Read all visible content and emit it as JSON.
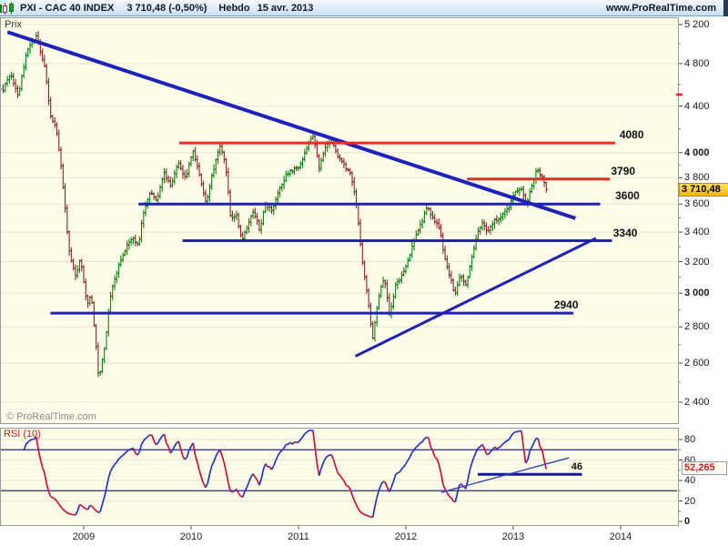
{
  "title_bar": {
    "icon": "candlestick-chart-icon",
    "symbol": "PXI - CAC 40 INDEX",
    "last_price": "3 710,48",
    "change": "(-0,50%)",
    "timeframe": "Hebdo",
    "date": "15 avr. 2013",
    "website": "www.ProRealTime.com"
  },
  "main_chart": {
    "y_axis_title": "Prix",
    "watermark": "© ProRealTime.com",
    "current_price_box": "3 710,48",
    "axis": {
      "ticks": [
        {
          "value": 5200,
          "label": "5 200"
        },
        {
          "value": 4800,
          "label": "4 800"
        },
        {
          "value": 4400,
          "label": "4 400"
        },
        {
          "value": 4000,
          "label": "4 000",
          "bold": true
        },
        {
          "value": 3800,
          "label": "3 800"
        },
        {
          "value": 3600,
          "label": "3 600"
        },
        {
          "value": 3400,
          "label": "3 400"
        },
        {
          "value": 3200,
          "label": "3 200"
        },
        {
          "value": 3000,
          "label": "3 000",
          "bold": true
        },
        {
          "value": 2800,
          "label": "2 800"
        },
        {
          "value": 2600,
          "label": "2 600"
        },
        {
          "value": 2400,
          "label": "2 400"
        }
      ],
      "minor_ticks": [
        5000,
        4600,
        4200,
        3900,
        3700,
        3500,
        3300,
        3100,
        2900,
        2700,
        2500
      ],
      "alert_marker_price": 4505
    }
  },
  "rsi_panel": {
    "label": "RSI (10)",
    "value_box": "52,265",
    "annotation_label": "46",
    "axis": {
      "ticks": [
        {
          "value": 80,
          "label": "80"
        },
        {
          "value": 60,
          "label": "60"
        },
        {
          "value": 40,
          "label": "40"
        },
        {
          "value": 20,
          "label": "20"
        },
        {
          "value": 0,
          "label": "0",
          "bold": true
        }
      ],
      "minor_ticks": [
        70,
        50,
        30,
        10
      ]
    }
  },
  "x_axis": {
    "years": [
      {
        "value": 2009,
        "label": "2009"
      },
      {
        "value": 2010,
        "label": "2010"
      },
      {
        "value": 2011,
        "label": "2011"
      },
      {
        "value": 2012,
        "label": "2012"
      },
      {
        "value": 2013,
        "label": "2013"
      },
      {
        "value": 2014,
        "label": "2014"
      }
    ]
  },
  "chart_data": [
    {
      "type": "candlestick",
      "title": "PXI - CAC 40 INDEX Hebdo (weekly bars)",
      "y_scale": "log",
      "x_range": [
        2008.25,
        2014.05
      ],
      "y_ticks": [
        5200,
        4800,
        4400,
        4000,
        3800,
        3600,
        3400,
        3200,
        3000,
        2800,
        2600,
        2400
      ],
      "bars_per_year": 52,
      "last_close": 3710.48,
      "price_path": [
        [
          2008.25,
          4550
        ],
        [
          2008.32,
          4700
        ],
        [
          2008.39,
          4500
        ],
        [
          2008.47,
          4930
        ],
        [
          2008.56,
          5070
        ],
        [
          2008.63,
          4800
        ],
        [
          2008.69,
          4330
        ],
        [
          2008.75,
          4170
        ],
        [
          2008.8,
          3800
        ],
        [
          2008.86,
          3280
        ],
        [
          2008.92,
          3100
        ],
        [
          2008.97,
          3220
        ],
        [
          2009.03,
          2930
        ],
        [
          2009.07,
          2990
        ],
        [
          2009.14,
          2520
        ],
        [
          2009.19,
          2660
        ],
        [
          2009.25,
          2990
        ],
        [
          2009.32,
          3160
        ],
        [
          2009.39,
          3280
        ],
        [
          2009.45,
          3370
        ],
        [
          2009.51,
          3310
        ],
        [
          2009.56,
          3560
        ],
        [
          2009.62,
          3700
        ],
        [
          2009.68,
          3630
        ],
        [
          2009.75,
          3840
        ],
        [
          2009.81,
          3730
        ],
        [
          2009.88,
          3910
        ],
        [
          2009.95,
          3800
        ],
        [
          2010.02,
          4020
        ],
        [
          2010.08,
          3800
        ],
        [
          2010.14,
          3600
        ],
        [
          2010.2,
          3840
        ],
        [
          2010.27,
          4060
        ],
        [
          2010.32,
          3910
        ],
        [
          2010.37,
          3470
        ],
        [
          2010.42,
          3540
        ],
        [
          2010.47,
          3340
        ],
        [
          2010.53,
          3440
        ],
        [
          2010.58,
          3560
        ],
        [
          2010.64,
          3400
        ],
        [
          2010.69,
          3600
        ],
        [
          2010.76,
          3560
        ],
        [
          2010.83,
          3730
        ],
        [
          2010.9,
          3840
        ],
        [
          2010.97,
          3870
        ],
        [
          2011.02,
          3900
        ],
        [
          2011.08,
          4050
        ],
        [
          2011.14,
          4160
        ],
        [
          2011.19,
          3870
        ],
        [
          2011.25,
          4050
        ],
        [
          2011.31,
          4090
        ],
        [
          2011.36,
          3980
        ],
        [
          2011.42,
          3900
        ],
        [
          2011.48,
          3840
        ],
        [
          2011.54,
          3600
        ],
        [
          2011.59,
          3220
        ],
        [
          2011.64,
          2990
        ],
        [
          2011.69,
          2730
        ],
        [
          2011.75,
          2990
        ],
        [
          2011.8,
          3100
        ],
        [
          2011.85,
          2860
        ],
        [
          2011.9,
          3040
        ],
        [
          2011.95,
          3100
        ],
        [
          2012.0,
          3160
        ],
        [
          2012.05,
          3280
        ],
        [
          2012.1,
          3400
        ],
        [
          2012.15,
          3470
        ],
        [
          2012.2,
          3590
        ],
        [
          2012.25,
          3500
        ],
        [
          2012.31,
          3440
        ],
        [
          2012.36,
          3220
        ],
        [
          2012.41,
          3100
        ],
        [
          2012.46,
          2990
        ],
        [
          2012.51,
          3130
        ],
        [
          2012.56,
          3040
        ],
        [
          2012.61,
          3220
        ],
        [
          2012.66,
          3370
        ],
        [
          2012.71,
          3470
        ],
        [
          2012.76,
          3400
        ],
        [
          2012.81,
          3470
        ],
        [
          2012.86,
          3500
        ],
        [
          2012.92,
          3540
        ],
        [
          2012.97,
          3590
        ],
        [
          2013.02,
          3700
        ],
        [
          2013.07,
          3730
        ],
        [
          2013.12,
          3600
        ],
        [
          2013.17,
          3730
        ],
        [
          2013.22,
          3870
        ],
        [
          2013.27,
          3800
        ],
        [
          2013.31,
          3710
        ]
      ],
      "levels": [
        {
          "label": "4080",
          "price": 4080,
          "color": "#ee2b2b",
          "t1": 2009.89,
          "t2": 2013.95,
          "label_t": 2013.99
        },
        {
          "label": "3790",
          "price": 3790,
          "color": "#ee2b2b",
          "t1": 2012.57,
          "t2": 2013.9,
          "label_t": 2013.91
        },
        {
          "label": "3600",
          "price": 3600,
          "color": "#2020bb",
          "t1": 2009.51,
          "t2": 2013.81,
          "label_t": 2013.95
        },
        {
          "label": "3340",
          "price": 3340,
          "color": "#2020bb",
          "t1": 2009.92,
          "t2": 2013.92,
          "label_t": 2013.93
        },
        {
          "label": "2940",
          "price": 2940,
          "draw_price": 2880,
          "color": "#2020bb",
          "t1": 2008.69,
          "t2": 2013.56,
          "label_t": 2013.38
        }
      ],
      "trendlines": [
        {
          "name": "descending-resistance",
          "t1": 2008.29,
          "p1": 5120,
          "t2": 2013.58,
          "p2": 3497,
          "width": 4
        },
        {
          "name": "ascending-support",
          "t1": 2011.53,
          "p1": 2637,
          "t2": 2013.77,
          "p2": 3357,
          "width": 3
        }
      ]
    },
    {
      "type": "line",
      "title": "RSI (10)",
      "period": 10,
      "y_range": [
        0,
        100
      ],
      "overbought": 70,
      "oversold": 30,
      "grid_levels": [
        80,
        60,
        40,
        20
      ],
      "last_value": 52.265,
      "horizontal_marker": {
        "value": 46,
        "t1": 2012.67,
        "t2": 2013.64,
        "label": "46",
        "label_t": 2013.54
      },
      "trendline": {
        "t1": 2012.33,
        "v1": 28.4,
        "t2": 2013.52,
        "v2": 62.2
      }
    }
  ],
  "colors": {
    "panel_bg": "#fcfce9",
    "grid": "#e4e4d0",
    "border": "#9a9a9a",
    "candle_up": "#0f7d0f",
    "candle_down": "#8a2525",
    "level_red": "#ee2b2b",
    "level_blue": "#2020bb",
    "rsi_up": "#2233cc",
    "rsi_down": "#cc1133",
    "rsi_threshold": "#2222aa",
    "rsi_marker": "#181899",
    "rsi_trend": "#3344bb",
    "price_box_bg": "#f2b606",
    "price_box_border": "#c08c00",
    "alert_red": "#dd2222"
  }
}
